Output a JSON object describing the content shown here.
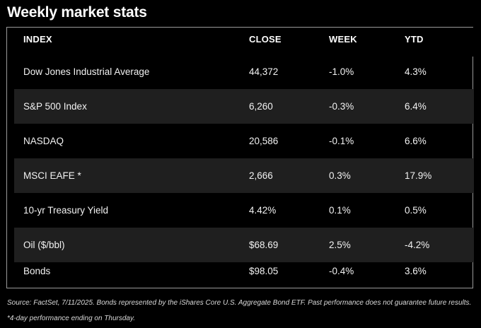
{
  "title": "Weekly market stats",
  "table": {
    "headers": {
      "index": "INDEX",
      "close": "CLOSE",
      "week": "WEEK",
      "ytd": "YTD"
    },
    "rows": [
      {
        "index": "Dow Jones Industrial Average",
        "close": "44,372",
        "week": "-1.0%",
        "ytd": "4.3%"
      },
      {
        "index": "S&P 500 Index",
        "close": "6,260",
        "week": "-0.3%",
        "ytd": "6.4%"
      },
      {
        "index": "NASDAQ",
        "close": "20,586",
        "week": "-0.1%",
        "ytd": "6.6%"
      },
      {
        "index": "MSCI EAFE *",
        "close": "2,666",
        "week": "0.3%",
        "ytd": "17.9%"
      },
      {
        "index": "10-yr Treasury Yield",
        "close": "4.42%",
        "week": "0.1%",
        "ytd": "0.5%"
      },
      {
        "index": "Oil ($/bbl)",
        "close": "$68.69",
        "week": "2.5%",
        "ytd": "-4.2%"
      },
      {
        "index": "Bonds",
        "close": "$98.05",
        "week": "-0.4%",
        "ytd": "3.6%"
      }
    ]
  },
  "footnote": "Source: FactSet, 7/11/2025. Bonds represented by the iShares Core U.S. Aggregate Bond ETF. Past performance does not guarantee future results. *4-day performance ending on Thursday.",
  "colors": {
    "background": "#000000",
    "row_shade": "#1f1f1f",
    "border": "#9a9a9a",
    "text": "#ffffff"
  }
}
